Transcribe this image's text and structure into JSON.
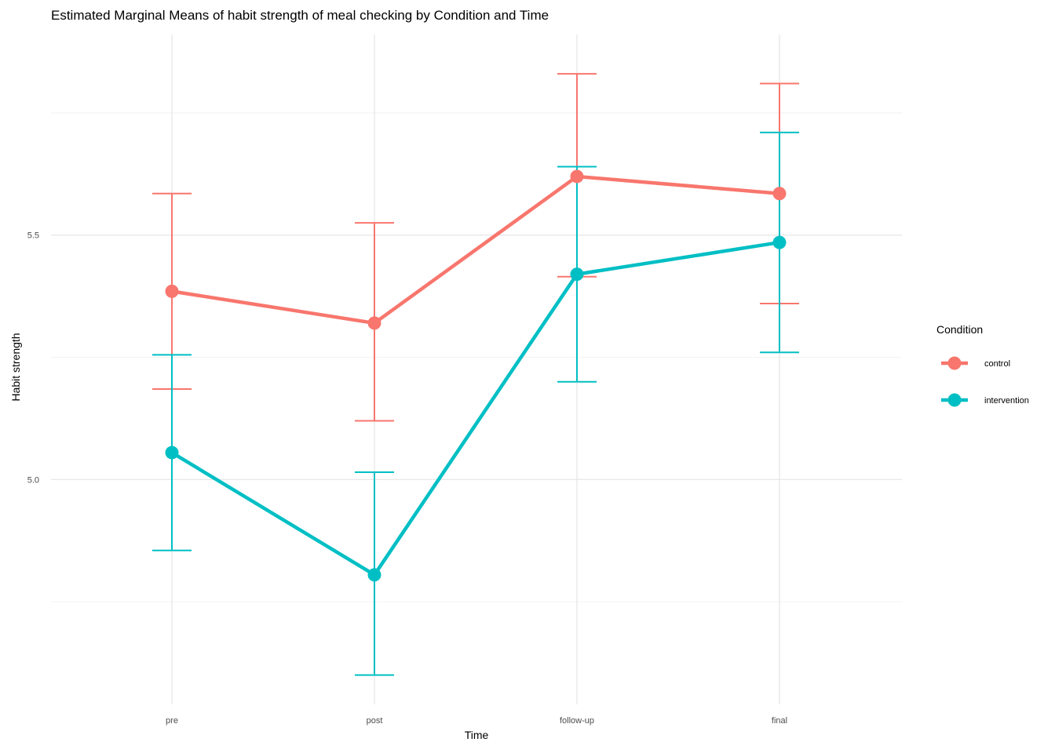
{
  "chart_data": {
    "type": "line",
    "title": "Estimated Marginal Means of habit strength of meal checking by Condition and Time",
    "xlabel": "Time",
    "ylabel": "Habit strength",
    "categories": [
      "pre",
      "post",
      "follow-up",
      "final"
    ],
    "ylim": [
      4.54,
      5.92
    ],
    "y_ticks": [
      5.0,
      5.5
    ],
    "y_tick_labels": [
      "5.0",
      "5.5"
    ],
    "grid": true,
    "legend": {
      "title": "Condition",
      "position": "right"
    },
    "series": [
      {
        "name": "control",
        "color": "#F8766D",
        "values": [
          5.385,
          5.32,
          5.62,
          5.585
        ],
        "lower": [
          5.185,
          5.12,
          5.415,
          5.36
        ],
        "upper": [
          5.585,
          5.525,
          5.83,
          5.81
        ]
      },
      {
        "name": "intervention",
        "color": "#00BFC4",
        "values": [
          5.055,
          4.805,
          5.42,
          5.485
        ],
        "lower": [
          4.855,
          4.6,
          5.2,
          5.26
        ],
        "upper": [
          5.255,
          5.015,
          5.64,
          5.71
        ]
      }
    ]
  }
}
